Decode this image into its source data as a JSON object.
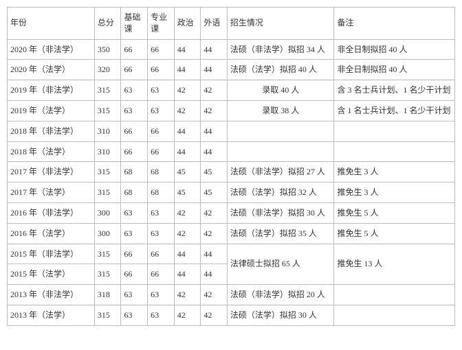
{
  "headers": {
    "year": "年份",
    "total": "总分",
    "basic": "基础课",
    "major": "专业课",
    "politics": "政治",
    "language": "外语",
    "admission": "招生情况",
    "note": "备注"
  },
  "rows": [
    {
      "year": "2020 年（非法学）",
      "total": "350",
      "basic": "66",
      "major": "66",
      "politics": "44",
      "language": "44",
      "admission": "法硕（非法学）拟招 34 人",
      "note": "非全日制拟招 40 人"
    },
    {
      "year": "2020 年（法学）",
      "total": "320",
      "basic": "66",
      "major": "66",
      "politics": "44",
      "language": "44",
      "admission": "法硕（法学）拟招 40 人",
      "note": "非全日制拟招 40 人"
    },
    {
      "year": "2019 年（非法学）",
      "total": "315",
      "basic": "63",
      "major": "63",
      "politics": "42",
      "language": "42",
      "admission": "录取 40 人",
      "note": "含 3 名士兵计划、1 名少干计划"
    },
    {
      "year": "2019 年（法学）",
      "total": "315",
      "basic": "63",
      "major": "63",
      "politics": "42",
      "language": "42",
      "admission": "录取 38 人",
      "note": "含 1 名士兵计划、1 名少干计划"
    },
    {
      "year": "2018 年（非法学）",
      "total": "310",
      "basic": "66",
      "major": "66",
      "politics": "44",
      "language": "44",
      "admission": "",
      "note": ""
    },
    {
      "year": "2018 年（法学）",
      "total": "310",
      "basic": "66",
      "major": "66",
      "politics": "44",
      "language": "44",
      "admission": "",
      "note": ""
    },
    {
      "year": "2017 年（非法学）",
      "total": "315",
      "basic": "68",
      "major": "68",
      "politics": "45",
      "language": "45",
      "admission": "法硕（非法学）拟招 27 人",
      "note": "推免生 3 人"
    },
    {
      "year": "2017 年（法学）",
      "total": "315",
      "basic": "68",
      "major": "68",
      "politics": "45",
      "language": "45",
      "admission": "法硕（法学）拟招 32 人",
      "note": "推免生 3 人"
    },
    {
      "year": "2016 年（非法学）",
      "total": "300",
      "basic": "63",
      "major": "63",
      "politics": "42",
      "language": "42",
      "admission": "法硕（非法学）拟招 30 人",
      "note": "推免生 5 人"
    },
    {
      "year": "2016 年（法学）",
      "total": "300",
      "basic": "63",
      "major": "63",
      "politics": "42",
      "language": "42",
      "admission": "法硕（法学）拟招 35 人",
      "note": "推免生 5 人"
    },
    {
      "year": "2015 年（非法学）",
      "total": "315",
      "basic": "66",
      "major": "66",
      "politics": "44",
      "language": "44",
      "admission": "法律硕士拟招 65 人",
      "note": "推免生 13 人",
      "admission_merged": true,
      "note_merged": true
    },
    {
      "year": "2015 年（法学）",
      "total": "315",
      "basic": "66",
      "major": "66",
      "politics": "44",
      "language": "44",
      "skip_merged": true
    },
    {
      "year": "2013 年（非法学）",
      "total": "318",
      "basic": "63",
      "major": "63",
      "politics": "42",
      "language": "42",
      "admission": "法硕（非法学）拟招 20 人",
      "note": ""
    },
    {
      "year": "2013 年（法学）",
      "total": "315",
      "basic": "63",
      "major": "63",
      "politics": "42",
      "language": "42",
      "admission": "法硕（法学）拟招 30 人",
      "note": ""
    }
  ],
  "style": {
    "font_family": "SimSun",
    "font_size_pt": 9,
    "border_color": "#bbbbbb",
    "text_color": "#333333",
    "background_color": "#ffffff",
    "special_center_rows": [
      2,
      3
    ]
  }
}
